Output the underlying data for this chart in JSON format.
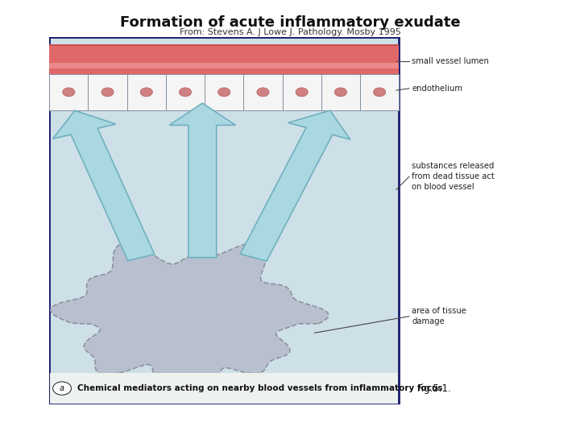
{
  "title": "Formation of acute inflammatory exudate",
  "subtitle": "From: Stevens A. J Lowe J. Pathology. Mosby 1995",
  "caption_letter": "a",
  "caption_text": "Chemical mediators acting on nearby blood vessels from inflammatory focus",
  "fig_label": "Fig.5.1.",
  "bg_color": "#ffffff",
  "diagram_bg": "#cde0e8",
  "diagram_border": "#1a1a6e",
  "vessel_bg": "#f0f0f0",
  "vessel_lumen_color": "#d96060",
  "endothelium_color": "#e8e8e8",
  "cell_border_color": "#a0a8b0",
  "cloud_color": "#b8c0d0",
  "cloud_border": "#909098",
  "annotations": [
    "small vessel lumen",
    "endothelium",
    "substances released\nfrom dead tissue act\non blood vessel",
    "area of tissue\ndamage"
  ]
}
